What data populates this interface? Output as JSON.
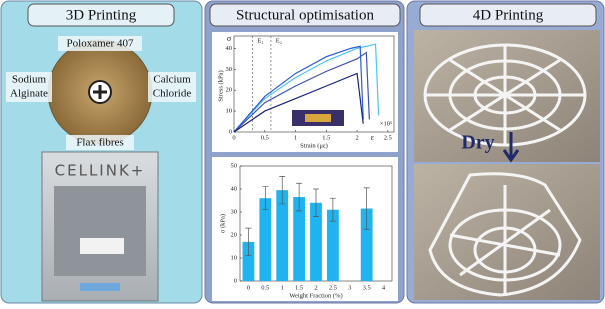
{
  "left_panel": {
    "title": "3D Printing",
    "top_label": "Poloxamer 407",
    "left_label": [
      "Sodium",
      "Alginate"
    ],
    "right_label": [
      "Calcium",
      "Chloride"
    ],
    "bottom_label": "Flax fibres",
    "printer_brand": "CELLINK+"
  },
  "middle_panel": {
    "title": "Structural optimisation",
    "stress_strain": {
      "y_label": "Stress (kPa)",
      "x_label": "Strain (με)",
      "x_multiplier": "×10⁵",
      "sigma": "σ",
      "epsilon": "ε",
      "e1": "E₁",
      "e2": "E₂",
      "xlim": [
        0,
        2.6
      ],
      "ylim": [
        0,
        44
      ],
      "xticks": [
        0,
        0.5,
        1,
        1.5,
        2,
        2.5
      ],
      "yticks": [
        0,
        10,
        20,
        30,
        40
      ],
      "series": [
        {
          "color": "#4fc3f0",
          "x": [
            0,
            0.5,
            1,
            1.5,
            2,
            2.3,
            2.35
          ],
          "values": [
            0,
            16,
            26,
            34,
            40,
            42,
            8
          ]
        },
        {
          "color": "#2a5bd7",
          "x": [
            0,
            0.5,
            1,
            1.5,
            1.9,
            2.05,
            2.1
          ],
          "values": [
            0,
            17,
            28,
            36,
            40,
            41,
            6
          ]
        },
        {
          "color": "#3f51b5",
          "x": [
            0,
            0.5,
            1,
            1.5,
            2,
            2.15,
            2.2
          ],
          "values": [
            0,
            14,
            22,
            29,
            35,
            38,
            6
          ]
        },
        {
          "color": "#1a237e",
          "x": [
            0,
            0.5,
            1,
            1.5,
            2,
            2.1
          ],
          "values": [
            0,
            10,
            16,
            22,
            28,
            4
          ]
        }
      ]
    },
    "bar_chart": {
      "type": "bar",
      "y_label": "σ (kPa)",
      "x_label": "Weight Fraction (%)",
      "categories": [
        "0",
        "0.5",
        "1",
        "1.5",
        "2",
        "2.5",
        "3",
        "3.5",
        "4"
      ],
      "values": [
        17,
        36,
        39.5,
        36.5,
        34,
        31,
        null,
        31.5,
        null
      ],
      "errors": [
        6,
        5,
        6,
        6,
        6,
        5,
        null,
        9,
        null
      ],
      "color": "#1fb3f0",
      "ylim": [
        0,
        50
      ],
      "yticks": [
        0,
        10,
        20,
        30,
        40,
        50
      ]
    }
  },
  "right_panel": {
    "title": "4D Printing",
    "annotation": "Dry"
  }
}
